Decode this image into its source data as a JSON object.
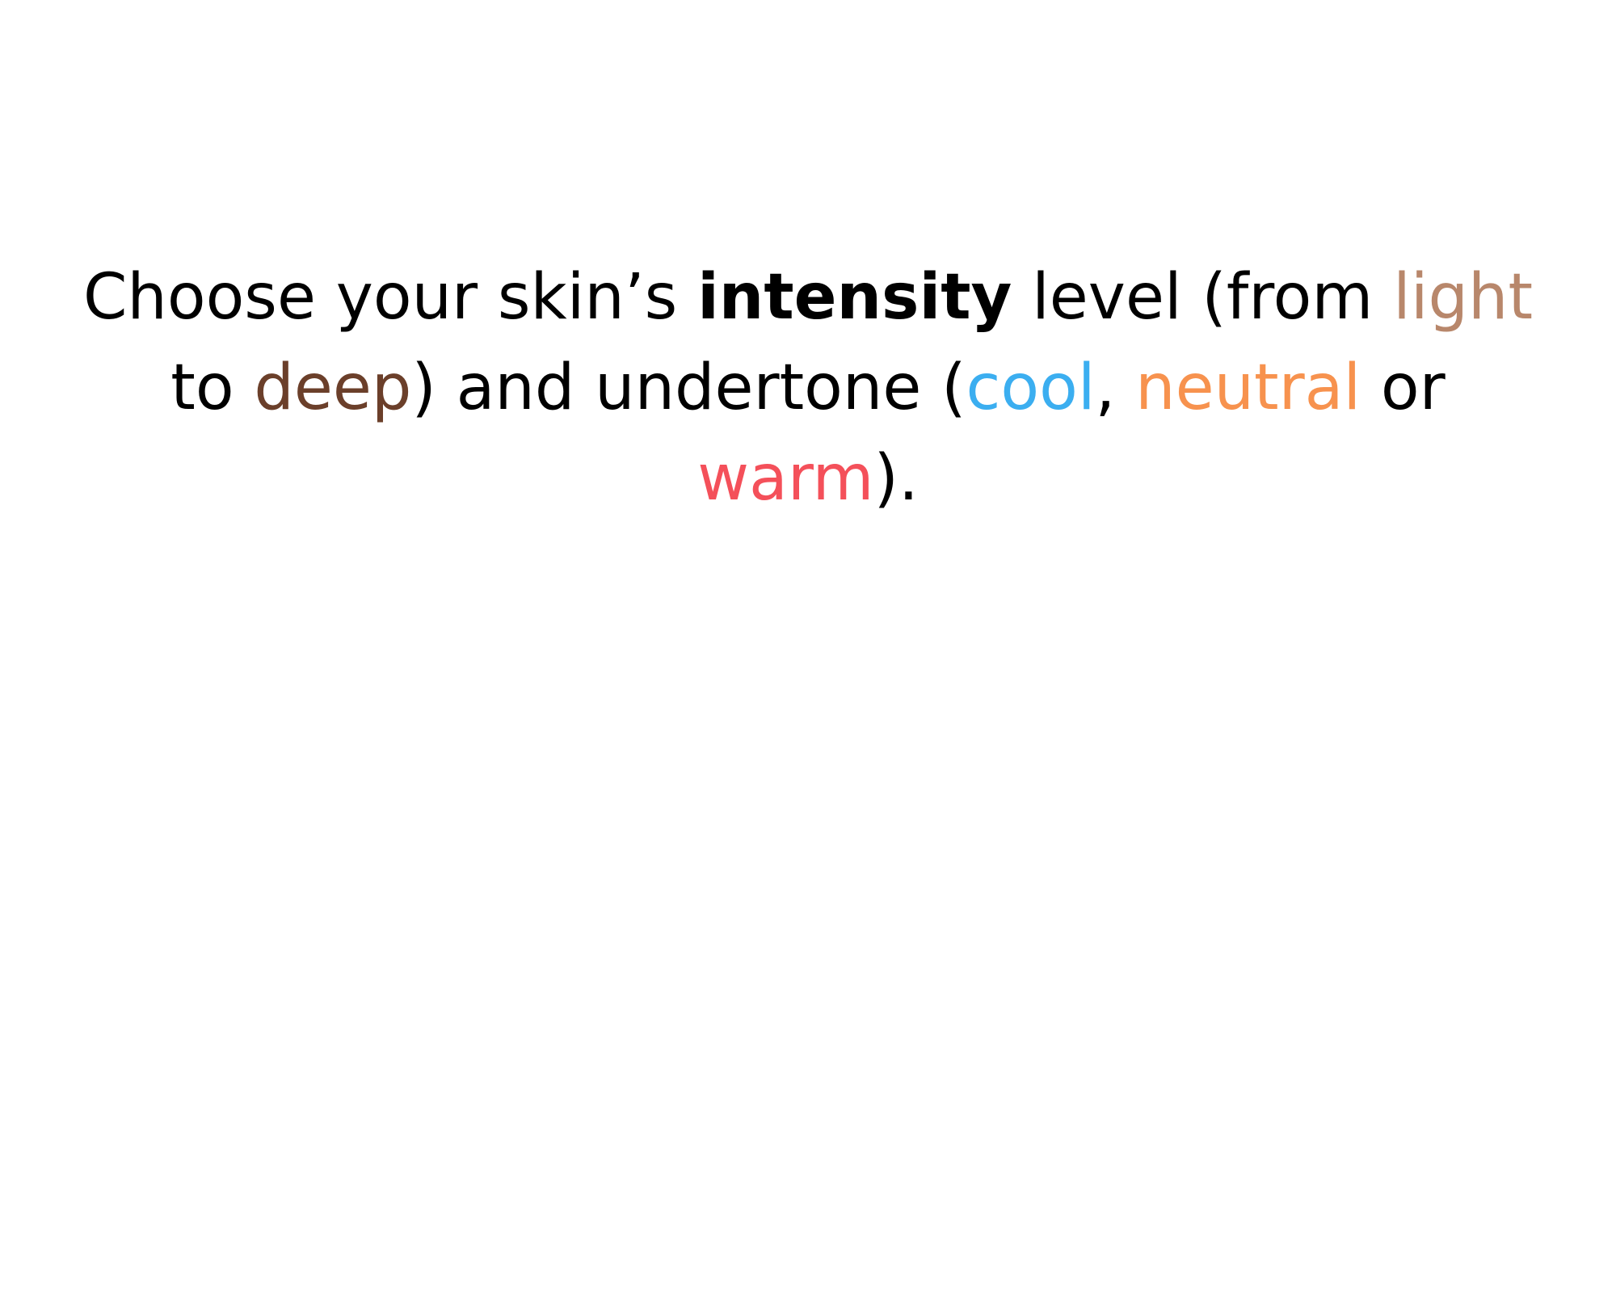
{
  "instruction": {
    "part1": "Choose your skin’s ",
    "intensity": "intensity",
    "part2": " level (from ",
    "light": "light",
    "part3": " to ",
    "deep": "deep",
    "part4": ") and undertone (",
    "cool": "cool",
    "part5": ", ",
    "neutral": "neutral",
    "part6": " or ",
    "warm": "warm",
    "part7": ")."
  },
  "colors": {
    "text": "#000000",
    "light": "#B8876B",
    "deep": "#6B3F2A",
    "cool": "#3BAEF0",
    "neutral": "#F7924E",
    "warm": "#F4505A"
  }
}
